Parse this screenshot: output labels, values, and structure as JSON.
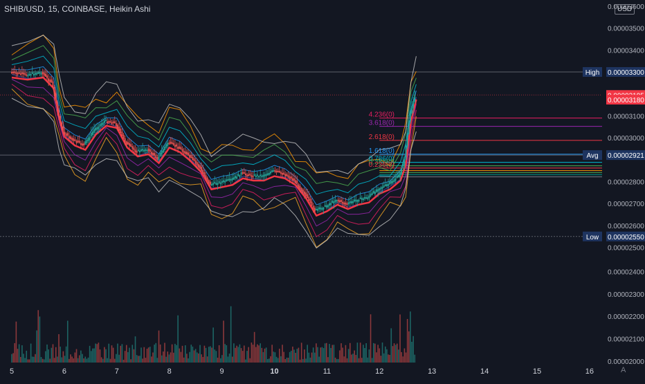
{
  "header": {
    "title": "SHIB/USD, 15, COINBASE, Heikin Ashi",
    "currency": "USD",
    "corner_label": "A"
  },
  "chart_data": {
    "type": "candlestick",
    "symbol": "SHIB/USD",
    "interval": "15",
    "exchange": "COINBASE",
    "style": "Heikin Ashi",
    "x_ticks": [
      "5",
      "6",
      "7",
      "8",
      "9",
      "10",
      "11",
      "12",
      "13",
      "14",
      "15",
      "16"
    ],
    "bold_x_ticks": [
      "10"
    ],
    "price_ticks": [
      "0.00003600",
      "0.00003500",
      "0.00003400",
      "0.00003300",
      "0.00003100",
      "0.00003000",
      "0.00002800",
      "0.00002700",
      "0.00002600",
      "0.00002500",
      "0.00002400",
      "0.00002300",
      "0.00002200",
      "0.00002100",
      "0.00002000"
    ],
    "price_ticks_values": [
      3.6e-05,
      3.5e-05,
      3.4e-05,
      3.3e-05,
      3.1e-05,
      3e-05,
      2.8e-05,
      2.7e-05,
      2.6e-05,
      2.5e-05,
      2.4e-05,
      2.3e-05,
      2.2e-05,
      2.1e-05,
      2e-05
    ],
    "price_range": [
      2.48e-05,
      3.61e-05
    ],
    "y_axis_note": "right axis ticks continue below the price area into the volume pane",
    "grid": false,
    "marker_labels": [
      {
        "name": "High",
        "value_label": "0.00003300",
        "value": 3.3e-05,
        "color": "#1e3460"
      },
      {
        "name": "Avg",
        "value_label": "0.00002921",
        "value": 2.921e-05,
        "color": "#1e3460"
      },
      {
        "name": "Low",
        "value_label": "0.00002550",
        "value": 2.55e-05,
        "color": "#1e3460"
      }
    ],
    "price_badges": [
      {
        "label": "0.00003195",
        "value": 3.195e-05,
        "color": "#f23645"
      },
      {
        "label": "0.00003180",
        "value": 3.18e-05,
        "color": "#f23645"
      }
    ],
    "fib_levels": [
      {
        "label": "4.236(0)",
        "value": 3.09e-05,
        "color": "#e91e63"
      },
      {
        "label": "3.618(0)",
        "value": 3.052e-05,
        "color": "#9c27b0"
      },
      {
        "label": "2.618(0)",
        "value": 2.988e-05,
        "color": "#f23645"
      },
      {
        "label": "1.618(0)",
        "value": 2.925e-05,
        "color": "#2196f3"
      },
      {
        "label": "0.786(0)",
        "value": 2.888e-05,
        "color": "#00bcd4"
      },
      {
        "label": "0.382(0)",
        "value": 2.872e-05,
        "color": "#4caf50"
      },
      {
        "label": "0.236(0)",
        "value": 2.862e-05,
        "color": "#f23645"
      }
    ],
    "series": [
      {
        "name": "price",
        "x": [
          5.0,
          5.3,
          5.6,
          5.8,
          5.9,
          6.0,
          6.2,
          6.4,
          6.6,
          6.8,
          7.0,
          7.2,
          7.4,
          7.6,
          7.8,
          8.0,
          8.2,
          8.4,
          8.6,
          8.8,
          9.0,
          9.2,
          9.4,
          9.6,
          9.8,
          10.0,
          10.2,
          10.4,
          10.6,
          10.8,
          11.0,
          11.2,
          11.4,
          11.6,
          11.8,
          12.0,
          12.2,
          12.4,
          12.5,
          12.6,
          12.7
        ],
        "values": [
          3.3e-05,
          3.29e-05,
          3.3e-05,
          3.25e-05,
          3.12e-05,
          3.03e-05,
          2.99e-05,
          2.97e-05,
          3.04e-05,
          3.08e-05,
          3.07e-05,
          2.98e-05,
          2.94e-05,
          2.95e-05,
          2.91e-05,
          2.98e-05,
          2.96e-05,
          2.92e-05,
          2.87e-05,
          2.79e-05,
          2.8e-05,
          2.81e-05,
          2.84e-05,
          2.83e-05,
          2.83e-05,
          2.85e-05,
          2.84e-05,
          2.81e-05,
          2.75e-05,
          2.67e-05,
          2.69e-05,
          2.72e-05,
          2.7e-05,
          2.72e-05,
          2.73e-05,
          2.77e-05,
          2.79e-05,
          2.83e-05,
          2.9e-05,
          3.1e-05,
          3.2e-05
        ]
      }
    ],
    "volume_x_range": [
      5.0,
      12.7
    ]
  }
}
